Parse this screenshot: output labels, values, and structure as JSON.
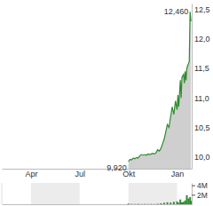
{
  "chart_data": [
    {
      "type": "area",
      "x": [
        6.0,
        6.1,
        6.2,
        6.3,
        6.4,
        6.5,
        6.6,
        6.7,
        6.8,
        6.9,
        7.0,
        7.1,
        7.2,
        7.3,
        7.4,
        7.5,
        7.6,
        7.7,
        7.8,
        7.9,
        8.0,
        8.1,
        8.2,
        8.3,
        8.4,
        8.5,
        8.6,
        8.7,
        8.8,
        8.9,
        9.0,
        9.05,
        9.1,
        9.2,
        9.25,
        9.3,
        9.4,
        9.45,
        9.5,
        9.55,
        9.6,
        9.65,
        9.7,
        9.75,
        9.8,
        9.85
      ],
      "values": [
        9.92,
        9.96,
        9.95,
        9.98,
        9.97,
        9.99,
        9.98,
        10.02,
        10.04,
        10.03,
        10.04,
        10.03,
        10.05,
        10.04,
        10.05,
        10.06,
        10.05,
        10.07,
        10.12,
        10.1,
        10.14,
        10.22,
        10.3,
        10.42,
        10.55,
        10.5,
        10.68,
        10.85,
        10.72,
        10.95,
        10.8,
        11.05,
        10.85,
        11.3,
        11.0,
        11.35,
        11.4,
        11.25,
        11.45,
        11.3,
        11.5,
        11.55,
        11.58,
        11.62,
        12.46,
        12.3
      ],
      "color": "#2e8b2e",
      "xlim": [
        -1.8,
        9.9
      ],
      "xticks": [
        {
          "value": 0,
          "label": "Apr"
        },
        {
          "value": 3,
          "label": "Jul"
        },
        {
          "value": 6,
          "label": "Okt"
        },
        {
          "value": 9,
          "label": "Jan"
        }
      ],
      "ylim": [
        9.8,
        12.6
      ],
      "yticks": [
        {
          "value": 10.0,
          "label": "10,0"
        },
        {
          "value": 10.5,
          "label": "10,5"
        },
        {
          "value": 11.0,
          "label": "11,0"
        },
        {
          "value": 11.5,
          "label": "11,5"
        },
        {
          "value": 12.0,
          "label": "12,0"
        },
        {
          "value": 12.5,
          "label": "12,5"
        }
      ],
      "annotations": [
        {
          "text": "12,460",
          "x": 9.8,
          "y": 12.46
        },
        {
          "text": "9,920",
          "x": 6.0,
          "y": 9.92
        }
      ],
      "grid": false
    },
    {
      "type": "bar",
      "x": [
        6.0,
        6.2,
        6.4,
        6.6,
        6.8,
        7.0,
        7.2,
        7.4,
        7.6,
        7.8,
        8.0,
        8.2,
        8.4,
        8.6,
        8.8,
        9.0,
        9.1,
        9.2,
        9.3,
        9.4,
        9.5,
        9.6,
        9.7,
        9.8,
        9.85
      ],
      "values": [
        150000,
        80000,
        60000,
        90000,
        50000,
        70000,
        60000,
        80000,
        50000,
        120000,
        200000,
        300000,
        400000,
        350000,
        500000,
        600000,
        300000,
        1000000,
        400000,
        500000,
        800000,
        1900000,
        1200000,
        1500000,
        700000
      ],
      "color": "#2e8b2e",
      "xlim": [
        -1.8,
        9.9
      ],
      "xticks": [
        0,
        3,
        6,
        9
      ],
      "ylim": [
        0,
        4500000
      ],
      "yticks": [
        {
          "value": 2000000,
          "label": "2M"
        },
        {
          "value": 4000000,
          "label": "4M"
        }
      ],
      "tick_labels": "y",
      "grid": false
    }
  ]
}
